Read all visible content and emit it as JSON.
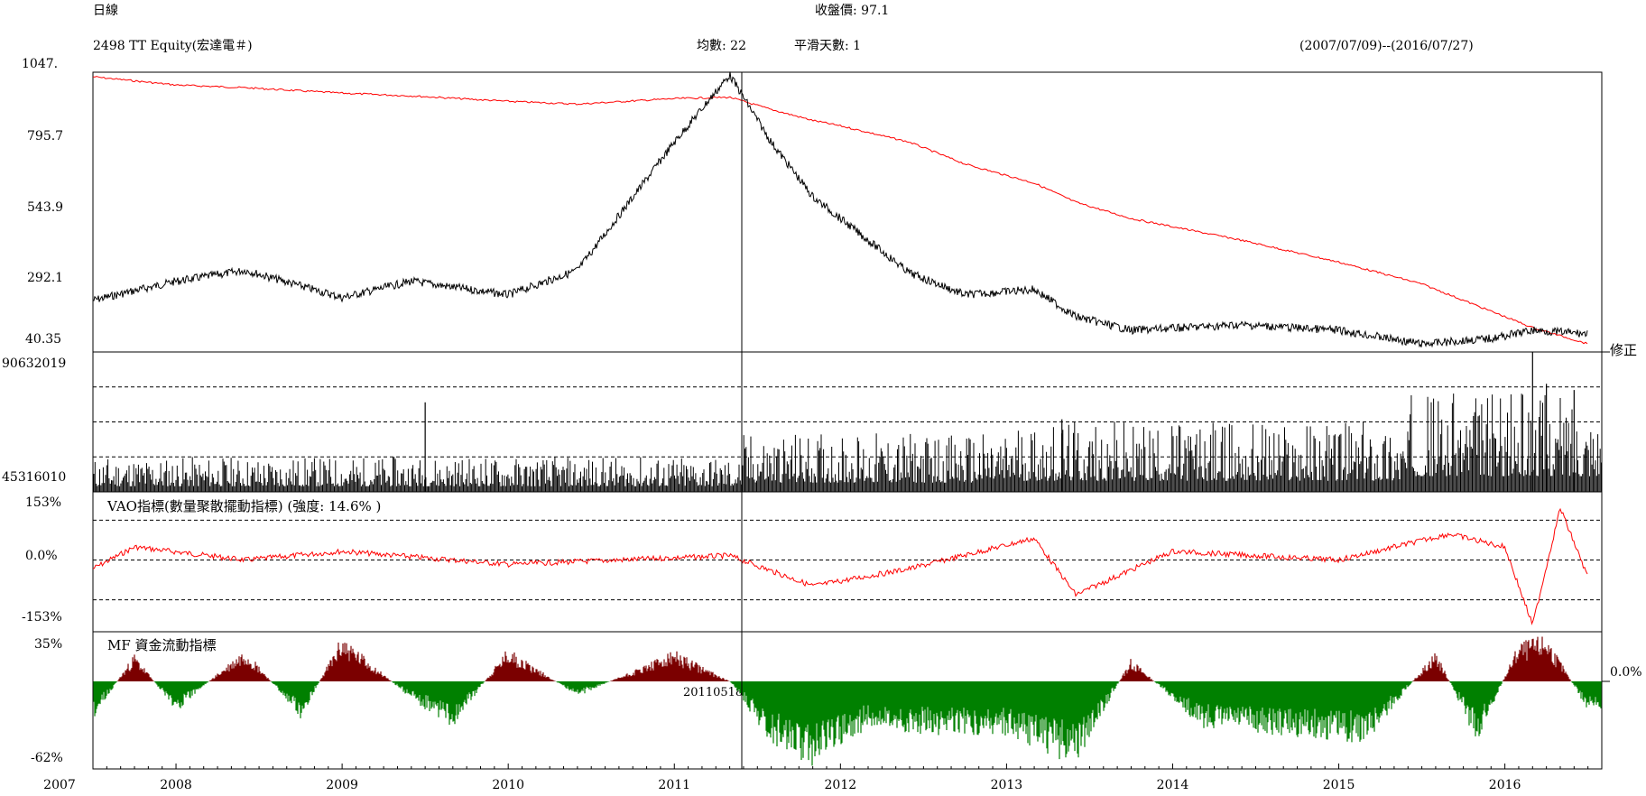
{
  "header": {
    "period": "日線",
    "ticker": "2498 TT Equity(宏達電＃)",
    "close_label": "收盤價: 97.1",
    "avg_label": "均數: 22",
    "smooth_label": "平滑天數: 1",
    "date_range": "(2007/07/09)--(2016/07/27)"
  },
  "panels": {
    "price": {
      "ticks": [
        "1047.",
        "795.7",
        "543.9",
        "292.1",
        "40.35"
      ],
      "right_label": "修正"
    },
    "volume": {
      "ticks": [
        "90632019",
        "45316010"
      ]
    },
    "vao": {
      "title": "VAO指標(數量聚散擺動指標) (強度: 14.6% )",
      "ticks": [
        "153%",
        "0.0%",
        "-153%"
      ]
    },
    "mf": {
      "title": "MF 資金流動指標",
      "ticks": [
        "35%",
        "-62%"
      ],
      "right_label": "0.0%"
    }
  },
  "cursor": {
    "date_label": "20110518"
  },
  "chart_data": [
    {
      "type": "line",
      "title": "2498 TT Equity(宏達電＃)",
      "ylim": [
        40.35,
        1047
      ],
      "x": [
        "2007-07",
        "2008-01",
        "2008-06",
        "2009-01",
        "2009-06",
        "2010-01",
        "2010-06",
        "2011-01",
        "2011-05",
        "2011-08",
        "2011-11",
        "2012-01",
        "2012-06",
        "2012-10",
        "2013-03",
        "2013-06",
        "2013-10",
        "2014-06",
        "2015-01",
        "2015-07",
        "2015-12",
        "2016-03",
        "2016-07"
      ],
      "series": [
        {
          "name": "price",
          "color": "#000000",
          "values": [
            220,
            290,
            330,
            230,
            290,
            240,
            330,
            800,
            1047,
            800,
            600,
            520,
            320,
            240,
            260,
            160,
            110,
            130,
            110,
            60,
            80,
            110,
            97.1
          ]
        },
        {
          "name": "修正",
          "color": "#ff0000",
          "values": [
            1040,
            1010,
            1000,
            980,
            970,
            950,
            940,
            960,
            965,
            920,
            880,
            860,
            800,
            720,
            650,
            580,
            520,
            440,
            360,
            280,
            180,
            120,
            60
          ]
        }
      ]
    },
    {
      "type": "bar",
      "title": "volume",
      "ylim": [
        0,
        90632019
      ],
      "gridlines": [
        22658005,
        45316010,
        67974014
      ],
      "levels": [
        {
          "from": "2007-07",
          "to": "2011-06",
          "typical": 12000000
        },
        {
          "from": "2011-06",
          "to": "2013-01",
          "typical": 20000000
        },
        {
          "from": "2013-01",
          "to": "2015-06",
          "typical": 24000000
        },
        {
          "from": "2015-06",
          "to": "2016-07",
          "typical": 34000000
        }
      ],
      "spikes": [
        {
          "x": "2009-07",
          "value": 58000000
        },
        {
          "x": "2013-05",
          "value": 47000000
        },
        {
          "x": "2016-03",
          "value": 90632019
        },
        {
          "x": "2016-04",
          "value": 70000000
        },
        {
          "x": "2016-06",
          "value": 66000000
        }
      ]
    },
    {
      "type": "line",
      "title": "VAO指標(數量聚散擺動指標)",
      "ylim": [
        -153,
        153
      ],
      "x": [
        "2007-07",
        "2007-10",
        "2008-06",
        "2009-01",
        "2010-01",
        "2011-01",
        "2011-05",
        "2011-11",
        "2012-06",
        "2013-03",
        "2013-06",
        "2014-01",
        "2015-01",
        "2015-09",
        "2016-01",
        "2016-03",
        "2016-05",
        "2016-07"
      ],
      "series": [
        {
          "name": "VAO",
          "color": "#ff0000",
          "values": [
            -20,
            30,
            0,
            20,
            -10,
            5,
            10,
            -60,
            -20,
            50,
            -80,
            20,
            0,
            60,
            30,
            -150,
            120,
            -40
          ]
        }
      ]
    },
    {
      "type": "area",
      "title": "MF 資金流動指標",
      "ylim": [
        -62,
        35
      ],
      "colors": {
        "positive": "#7b0000",
        "negative": "#008000"
      },
      "x": [
        "2007-07",
        "2007-10",
        "2008-01",
        "2008-06",
        "2008-10",
        "2009-01",
        "2009-06",
        "2009-09",
        "2010-01",
        "2010-06",
        "2011-01",
        "2011-05",
        "2011-08",
        "2011-11",
        "2012-03",
        "2012-08",
        "2013-01",
        "2013-06",
        "2013-10",
        "2014-03",
        "2014-09",
        "2015-03",
        "2015-08",
        "2015-11",
        "2016-02",
        "2016-04",
        "2016-07"
      ],
      "series": [
        {
          "name": "MF",
          "values": [
            -25,
            18,
            -20,
            22,
            -25,
            30,
            -12,
            -30,
            22,
            -10,
            20,
            0,
            -40,
            -55,
            -30,
            -35,
            -35,
            -55,
            15,
            -30,
            -35,
            -40,
            20,
            -40,
            25,
            30,
            -20
          ]
        }
      ]
    }
  ]
}
